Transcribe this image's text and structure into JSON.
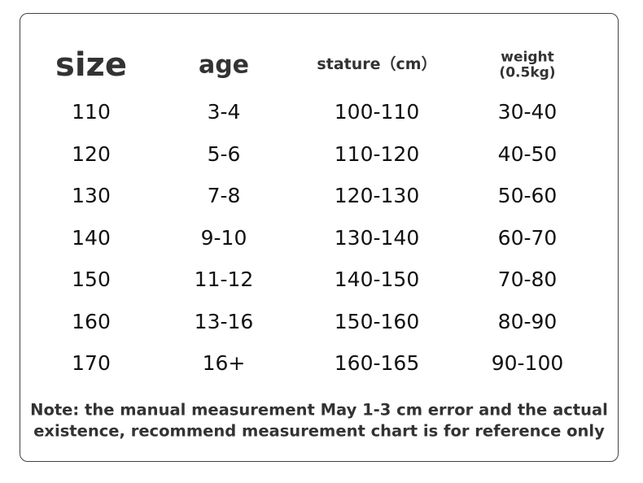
{
  "table": {
    "headers": [
      "size",
      "age",
      "stature（cm）",
      "weight\n(0.5kg)"
    ],
    "rows": [
      [
        "110",
        "3-4",
        "100-110",
        "30-40"
      ],
      [
        "120",
        "5-6",
        "110-120",
        "40-50"
      ],
      [
        "130",
        "7-8",
        "120-130",
        "50-60"
      ],
      [
        "140",
        "9-10",
        "130-140",
        "60-70"
      ],
      [
        "150",
        "11-12",
        "140-150",
        "70-80"
      ],
      [
        "160",
        "13-16",
        "150-160",
        "80-90"
      ],
      [
        "170",
        "16+",
        "160-165",
        "90-100"
      ]
    ]
  },
  "note": [
    "Note: the manual measurement May 1-3 cm error and the actual",
    "existence, recommend measurement chart is for reference only"
  ]
}
